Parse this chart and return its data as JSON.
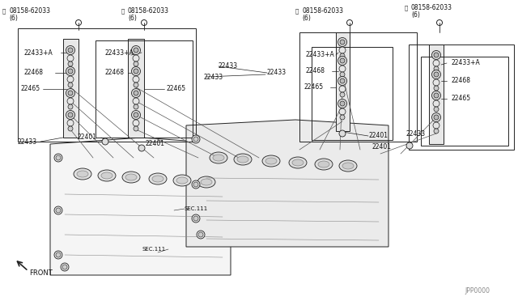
{
  "bg_color": "#ffffff",
  "fig_width": 6.4,
  "fig_height": 3.72,
  "dpi": 100,
  "watermark": "JPP0000",
  "front_label": "FRONT",
  "sec111": "SEC.111",
  "lc": "#222222",
  "glc": "#888888"
}
